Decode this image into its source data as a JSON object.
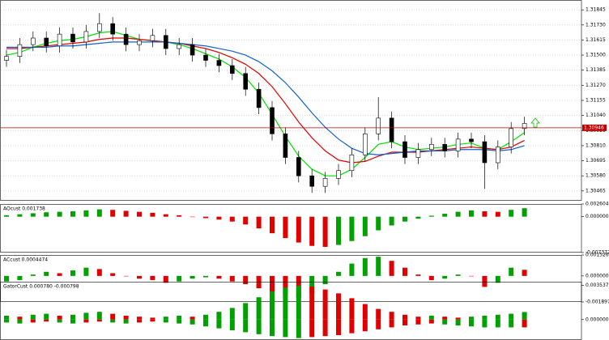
{
  "chart_data": [
    {
      "type": "candlestick",
      "ylim": [
        1.3039,
        1.3192
      ],
      "yticks": [
        {
          "value": 1.31845,
          "label": "1.31845"
        },
        {
          "value": 1.3173,
          "label": "1.31730"
        },
        {
          "value": 1.31615,
          "label": "1.31615"
        },
        {
          "value": 1.315,
          "label": "1.31500"
        },
        {
          "value": 1.31385,
          "label": "1.31385"
        },
        {
          "value": 1.3127,
          "label": "1.31270"
        },
        {
          "value": 1.31155,
          "label": "1.31155"
        },
        {
          "value": 1.3104,
          "label": "1.31040"
        },
        {
          "value": 1.30925,
          "label": "1.30925"
        },
        {
          "value": 1.3081,
          "label": "1.30810"
        },
        {
          "value": 1.30695,
          "label": "1.30695"
        },
        {
          "value": 1.3058,
          "label": "1.30580"
        },
        {
          "value": 1.30465,
          "label": "1.30465"
        }
      ],
      "grid": true,
      "up_color": "#ffffff",
      "down_color": "#000000",
      "open": [
        1.3146,
        1.3149,
        1.3158,
        1.3163,
        1.3157,
        1.3166,
        1.316,
        1.3168,
        1.3174,
        1.3166,
        1.3158,
        1.3161,
        1.3165,
        1.3155,
        1.3158,
        1.315,
        1.3146,
        1.3142,
        1.3136,
        1.3124,
        1.311,
        1.309,
        1.3072,
        1.3058,
        1.305,
        1.3056,
        1.3062,
        1.3074,
        1.309,
        1.3102,
        1.3084,
        1.3072,
        1.3078,
        1.3082,
        1.3077,
        1.3086,
        1.3084,
        1.3068,
        1.308,
        1.3094
      ],
      "high": [
        1.3154,
        1.3163,
        1.3168,
        1.3168,
        1.3171,
        1.3171,
        1.3173,
        1.3182,
        1.3179,
        1.3171,
        1.3166,
        1.317,
        1.317,
        1.3163,
        1.3163,
        1.3155,
        1.3151,
        1.3147,
        1.3141,
        1.3129,
        1.3115,
        1.3095,
        1.3077,
        1.3063,
        1.3061,
        1.3067,
        1.3079,
        1.3095,
        1.3118,
        1.3107,
        1.3089,
        1.3083,
        1.3087,
        1.3087,
        1.3091,
        1.3091,
        1.3089,
        1.3085,
        1.3099,
        1.3103
      ],
      "low": [
        1.3141,
        1.3144,
        1.3153,
        1.3152,
        1.3152,
        1.3155,
        1.3155,
        1.3163,
        1.3161,
        1.3153,
        1.3153,
        1.3156,
        1.315,
        1.315,
        1.3145,
        1.3141,
        1.3137,
        1.3131,
        1.3119,
        1.3105,
        1.3085,
        1.3067,
        1.3053,
        1.3045,
        1.3045,
        1.3051,
        1.3057,
        1.3069,
        1.3085,
        1.3079,
        1.3067,
        1.3067,
        1.3073,
        1.3072,
        1.3072,
        1.3079,
        1.3048,
        1.3063,
        1.3075,
        1.3089
      ],
      "close": [
        1.3149,
        1.3158,
        1.3163,
        1.3157,
        1.3166,
        1.316,
        1.3168,
        1.3174,
        1.3166,
        1.3158,
        1.3161,
        1.3165,
        1.3155,
        1.3158,
        1.315,
        1.3146,
        1.3142,
        1.3136,
        1.3124,
        1.311,
        1.309,
        1.3072,
        1.3058,
        1.305,
        1.3056,
        1.3062,
        1.3074,
        1.309,
        1.3102,
        1.3084,
        1.3072,
        1.3078,
        1.3082,
        1.3077,
        1.3086,
        1.3084,
        1.3068,
        1.308,
        1.3094,
        1.3098
      ],
      "lines": [
        {
          "color": "#00e000",
          "values": [
            1.315,
            1.3152,
            1.3156,
            1.3159,
            1.3161,
            1.3162,
            1.3164,
            1.3167,
            1.3168,
            1.3165,
            1.3162,
            1.3161,
            1.316,
            1.3158,
            1.3155,
            1.3151,
            1.3147,
            1.3141,
            1.3133,
            1.3121,
            1.3105,
            1.3088,
            1.3073,
            1.3063,
            1.3058,
            1.3058,
            1.3063,
            1.3072,
            1.3082,
            1.3084,
            1.308,
            1.3078,
            1.3079,
            1.308,
            1.3082,
            1.3083,
            1.3079,
            1.3078,
            1.3084,
            1.3091
          ]
        },
        {
          "color": "#e00000",
          "values": [
            1.3155,
            1.3155,
            1.3156,
            1.3157,
            1.3158,
            1.3159,
            1.316,
            1.3162,
            1.3163,
            1.3163,
            1.3162,
            1.3161,
            1.316,
            1.3159,
            1.3157,
            1.3155,
            1.3152,
            1.3148,
            1.3143,
            1.3136,
            1.3126,
            1.3113,
            1.3099,
            1.3087,
            1.3077,
            1.307,
            1.3068,
            1.3069,
            1.3073,
            1.3076,
            1.3076,
            1.3076,
            1.3077,
            1.3078,
            1.3079,
            1.308,
            1.3079,
            1.3078,
            1.308,
            1.3085
          ]
        },
        {
          "color": "#1060d0",
          "values": [
            1.3156,
            1.3156,
            1.3156,
            1.3156,
            1.3157,
            1.3157,
            1.3158,
            1.3159,
            1.316,
            1.316,
            1.316,
            1.316,
            1.316,
            1.3159,
            1.3158,
            1.3157,
            1.3155,
            1.3153,
            1.315,
            1.3145,
            1.3138,
            1.3129,
            1.3118,
            1.3106,
            1.3095,
            1.3086,
            1.3079,
            1.3075,
            1.3074,
            1.3075,
            1.3076,
            1.3077,
            1.3077,
            1.3077,
            1.3078,
            1.3078,
            1.3078,
            1.3077,
            1.3078,
            1.3081
          ]
        }
      ],
      "price_line": {
        "value": 1.30946,
        "label": "1.30946",
        "color": "#c00000"
      }
    },
    {
      "type": "bar",
      "title": "AOcust 0.001738",
      "ylim": [
        -0.007372,
        0.002604
      ],
      "yticks": [
        0.002604,
        {
          "value": 0,
          "label": "0.000000"
        },
        -0.007372
      ],
      "up_color": "#00a000",
      "down_color": "#e00000",
      "values": [
        0.0003,
        0.0005,
        0.0007,
        0.0009,
        0.001,
        0.0011,
        0.0013,
        0.0015,
        0.0014,
        0.0012,
        0.001,
        0.0008,
        0.0005,
        0.0003,
        0.0,
        -0.0003,
        -0.0006,
        -0.001,
        -0.0016,
        -0.0024,
        -0.0034,
        -0.0044,
        -0.0053,
        -0.006,
        -0.0062,
        -0.0058,
        -0.005,
        -0.004,
        -0.0028,
        -0.0018,
        -0.001,
        -0.0004,
        0.0002,
        0.0006,
        0.001,
        0.0013,
        0.0011,
        0.001,
        0.0014,
        0.001738
      ]
    },
    {
      "type": "bar",
      "title": "ACcust 0.0004474",
      "ylim": [
        -0.0018978,
        0.0015265
      ],
      "yticks": [
        0.0015265,
        {
          "value": 0,
          "label": "0.000000"
        },
        -0.0018978
      ],
      "up_color": "#00a000",
      "down_color": "#e00000",
      "values": [
        -0.0004,
        -0.0003,
        0.0001,
        0.0003,
        0.0002,
        0.0004,
        0.0006,
        0.0005,
        0.0002,
        0.0,
        -0.0002,
        -0.0003,
        -0.0005,
        -0.0004,
        -0.0002,
        -0.0001,
        -0.0002,
        -0.0004,
        -0.0006,
        -0.0009,
        -0.0012,
        -0.0014,
        -0.0016,
        -0.0013,
        -0.0006,
        0.0003,
        0.0009,
        0.0013,
        0.0014,
        0.0011,
        0.0006,
        0.0001,
        -0.0003,
        -0.0002,
        0.0001,
        0.0,
        -0.0008,
        -0.0005,
        0.0006,
        0.0004474
      ]
    },
    {
      "type": "bar",
      "title": "GatorCust 0.000780 -0.000798",
      "ylim": [
        -0.0021,
        0.0039
      ],
      "yticks": [
        0.003537,
        {
          "value": 0,
          "label": "0.000000"
        }
      ],
      "up_color": "#00a000",
      "down_color": "#e00000",
      "color_by": "magnitude",
      "series": [
        {
          "values": [
            0.0004,
            0.0003,
            0.0005,
            0.0006,
            0.0004,
            0.0005,
            0.0007,
            0.0008,
            0.0006,
            0.0004,
            0.0003,
            0.0002,
            0.0003,
            0.0004,
            0.0003,
            0.0005,
            0.0008,
            0.0012,
            0.0017,
            0.0023,
            0.0029,
            0.0033,
            0.0035,
            0.0034,
            0.0031,
            0.0027,
            0.0022,
            0.0016,
            0.0011,
            0.0008,
            0.0005,
            0.0003,
            0.0004,
            0.0003,
            0.0002,
            0.0003,
            0.0004,
            0.0005,
            0.0006,
            0.00078
          ]
        },
        {
          "values": [
            -0.0003,
            -0.0004,
            -0.0003,
            -0.0002,
            -0.0003,
            -0.0004,
            -0.0003,
            -0.0002,
            -0.0003,
            -0.0004,
            -0.0003,
            -0.0002,
            -0.0003,
            -0.0004,
            -0.0005,
            -0.0007,
            -0.0009,
            -0.0011,
            -0.0013,
            -0.0015,
            -0.0017,
            -0.0018,
            -0.0019,
            -0.0018,
            -0.0017,
            -0.0016,
            -0.0014,
            -0.0012,
            -0.001,
            -0.0008,
            -0.0006,
            -0.0005,
            -0.0004,
            -0.0005,
            -0.0006,
            -0.0007,
            -0.0008,
            -0.0008,
            -0.0008,
            -0.000798
          ]
        }
      ]
    }
  ]
}
